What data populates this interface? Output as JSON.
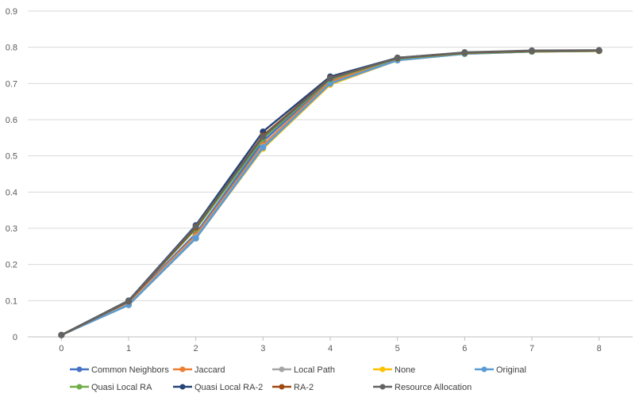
{
  "chart_data": {
    "type": "line",
    "title": "",
    "xlabel": "",
    "ylabel": "",
    "x": [
      0,
      1,
      2,
      3,
      4,
      5,
      6,
      7,
      8
    ],
    "xlim": [
      0,
      8
    ],
    "ylim": [
      0,
      0.9
    ],
    "y_ticks": [
      "0",
      "0.1",
      "0.2",
      "0.3",
      "0.4",
      "0.5",
      "0.6",
      "0.7",
      "0.8",
      "0.9"
    ],
    "x_ticks": [
      "0",
      "1",
      "2",
      "3",
      "4",
      "5",
      "6",
      "7",
      "8"
    ],
    "grid": "horizontal",
    "legend_position": "bottom",
    "series": [
      {
        "name": "Common Neighbors",
        "color": "#4472C4",
        "values": [
          0.005,
          0.095,
          0.285,
          0.54,
          0.71,
          0.768,
          0.784,
          0.789,
          0.79
        ]
      },
      {
        "name": "Jaccard",
        "color": "#ED7D31",
        "values": [
          0.005,
          0.093,
          0.28,
          0.53,
          0.705,
          0.767,
          0.783,
          0.789,
          0.79
        ]
      },
      {
        "name": "Local Path",
        "color": "#A5A5A5",
        "values": [
          0.005,
          0.09,
          0.275,
          0.525,
          0.7,
          0.765,
          0.782,
          0.788,
          0.79
        ]
      },
      {
        "name": "None",
        "color": "#FFC000",
        "values": [
          0.005,
          0.088,
          0.272,
          0.52,
          0.697,
          0.764,
          0.782,
          0.788,
          0.79
        ]
      },
      {
        "name": "Original",
        "color": "#5B9BD5",
        "values": [
          0.005,
          0.088,
          0.272,
          0.523,
          0.7,
          0.764,
          0.782,
          0.788,
          0.79
        ]
      },
      {
        "name": "Quasi Local RA",
        "color": "#70AD47",
        "values": [
          0.005,
          0.1,
          0.298,
          0.548,
          0.712,
          0.769,
          0.784,
          0.789,
          0.79
        ]
      },
      {
        "name": "Quasi Local RA-2",
        "color": "#264478",
        "values": [
          0.005,
          0.1,
          0.308,
          0.567,
          0.719,
          0.771,
          0.785,
          0.79,
          0.791
        ]
      },
      {
        "name": "RA-2",
        "color": "#9E480E",
        "values": [
          0.005,
          0.098,
          0.302,
          0.556,
          0.715,
          0.77,
          0.785,
          0.79,
          0.791
        ]
      },
      {
        "name": "Resource Allocation",
        "color": "#636363",
        "values": [
          0.005,
          0.099,
          0.305,
          0.553,
          0.714,
          0.771,
          0.786,
          0.791,
          0.792
        ]
      }
    ]
  }
}
